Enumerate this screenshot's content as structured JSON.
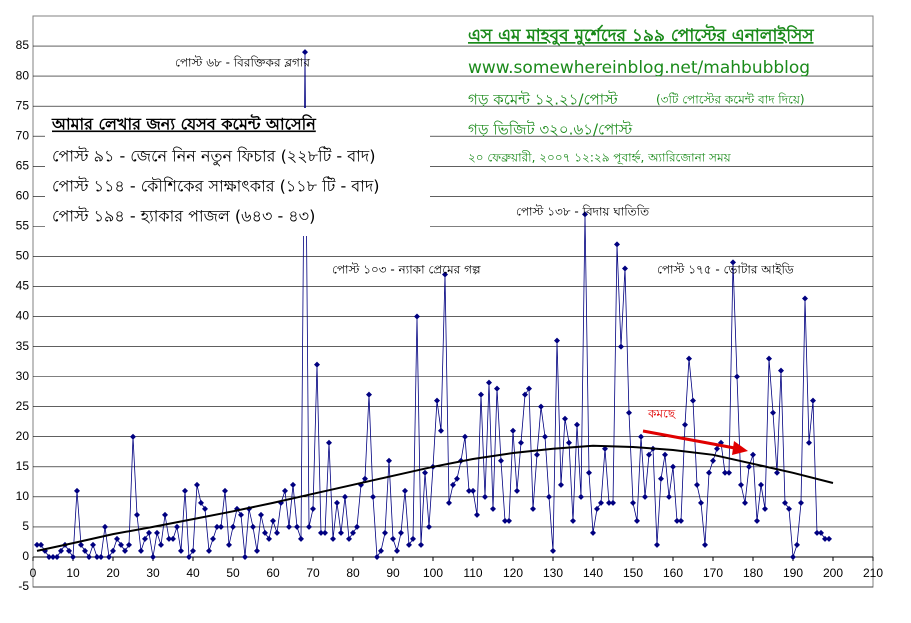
{
  "chart_data": {
    "type": "line",
    "annotations": {
      "title": "এস এম মাহবুব মুর্শেদের ১৯৯ পোস্টের এনালাইসিস",
      "url": "www.somewhereinblog.net/mahbubblog",
      "avg_comment": "গড় কমেন্ট ১২.২১/পোস্ট",
      "avg_comment_note": "(৩টি পোস্টের কমেন্ট বাদ দিয়ে)",
      "avg_visit": "গড় ভিজিট ৩২০.৬১/পোস্ট",
      "date": "২০ ফেব্রুয়ারী, ২০০৭ ১২:২৯ পূবার্হ্ন, অ্যারিজোনা সময়",
      "box_title": "আমার লেখার জন্য যেসব কমেন্ট আসেনি",
      "box_lines": [
        "পোস্ট ৯১ - জেনে নিন নতুন ফিচার (২২৮টি - বাদ)",
        "পোস্ট ১১৪ - কৌশিকের সাক্ষাৎকার (১১৮ টি - বাদ)",
        "পোস্ট ১৯৪ - হ্যাকার পাজল (৬৪৩ - ৪৩)"
      ],
      "peak_68": "পোস্ট ৬৮ - বিরক্তিকর ব্লগার",
      "peak_138": "পোস্ট ১৩৮ - বিদায় ঘাতিতি",
      "peak_103": "পোস্ট ১০৩ - ন্যাকা প্রেমের গল্প",
      "peak_175": "পোস্ট ১৭৫ - ভোটার আইডি",
      "trend_note": "কমছে"
    },
    "x": [
      1,
      2,
      3,
      4,
      5,
      6,
      7,
      8,
      9,
      10,
      11,
      12,
      13,
      14,
      15,
      16,
      17,
      18,
      19,
      20,
      21,
      22,
      23,
      24,
      25,
      26,
      27,
      28,
      29,
      30,
      31,
      32,
      33,
      34,
      35,
      36,
      37,
      38,
      39,
      40,
      41,
      42,
      43,
      44,
      45,
      46,
      47,
      48,
      49,
      50,
      51,
      52,
      53,
      54,
      55,
      56,
      57,
      58,
      59,
      60,
      61,
      62,
      63,
      64,
      65,
      66,
      67,
      68,
      69,
      70,
      71,
      72,
      73,
      74,
      75,
      76,
      77,
      78,
      79,
      80,
      81,
      82,
      83,
      84,
      85,
      86,
      87,
      88,
      89,
      90,
      91,
      92,
      93,
      94,
      95,
      96,
      97,
      98,
      99,
      100,
      101,
      102,
      103,
      104,
      105,
      106,
      107,
      108,
      109,
      110,
      111,
      112,
      113,
      114,
      115,
      116,
      117,
      118,
      119,
      120,
      121,
      122,
      123,
      124,
      125,
      126,
      127,
      128,
      129,
      130,
      131,
      132,
      133,
      134,
      135,
      136,
      137,
      138,
      139,
      140,
      141,
      142,
      143,
      144,
      145,
      146,
      147,
      148,
      149,
      150,
      151,
      152,
      153,
      154,
      155,
      156,
      157,
      158,
      159,
      160,
      161,
      162,
      163,
      164,
      165,
      166,
      167,
      168,
      169,
      170,
      171,
      172,
      173,
      174,
      175,
      176,
      177,
      178,
      179,
      180,
      181,
      182,
      183,
      184,
      185,
      186,
      187,
      188,
      189,
      190,
      191,
      192,
      193,
      194,
      195,
      196,
      197,
      198,
      199
    ],
    "series": [
      {
        "color": "#000080",
        "values": [
          2,
          2,
          1,
          0,
          0,
          0,
          1,
          2,
          1,
          0,
          11,
          2,
          1,
          0,
          2,
          0,
          0,
          5,
          0,
          1,
          3,
          2,
          1,
          2,
          20,
          7,
          1,
          3,
          4,
          0,
          4,
          2,
          7,
          3,
          3,
          5,
          1,
          11,
          0,
          1,
          12,
          9,
          8,
          1,
          3,
          5,
          5,
          11,
          2,
          5,
          8,
          7,
          0,
          8,
          5,
          1,
          7,
          4,
          3,
          6,
          4,
          9,
          11,
          5,
          12,
          5,
          3,
          84,
          5,
          8,
          32,
          4,
          4,
          19,
          3,
          9,
          4,
          10,
          3,
          4,
          5,
          12,
          13,
          27,
          10,
          0,
          1,
          4,
          16,
          3,
          1,
          4,
          11,
          2,
          3,
          40,
          2,
          14,
          5,
          15,
          26,
          21,
          47,
          9,
          12,
          13,
          16,
          20,
          11,
          11,
          7,
          27,
          10,
          29,
          8,
          28,
          16,
          6,
          6,
          21,
          11,
          19,
          27,
          28,
          8,
          17,
          25,
          20,
          10,
          1,
          36,
          12,
          23,
          19,
          6,
          22,
          10,
          57,
          14,
          4,
          8,
          9,
          18,
          9,
          9,
          52,
          35,
          48,
          24,
          9,
          6,
          20,
          10,
          17,
          18,
          2,
          13,
          17,
          10,
          15,
          6,
          6,
          22,
          33,
          26,
          12,
          9,
          2,
          14,
          16,
          18,
          19,
          14,
          14,
          49,
          30,
          12,
          9,
          15,
          17,
          6,
          12,
          8,
          33,
          24,
          14,
          31,
          9,
          8,
          0,
          2,
          9,
          43,
          19,
          26,
          4,
          4,
          3,
          3
        ]
      }
    ],
    "trendline": {
      "color": "#000000",
      "x": [
        1,
        10,
        20,
        30,
        40,
        50,
        60,
        70,
        80,
        90,
        100,
        110,
        120,
        130,
        140,
        150,
        160,
        170,
        180,
        190,
        200
      ],
      "values": [
        1,
        2.3,
        3.8,
        5,
        6.3,
        7.6,
        9,
        10.5,
        12,
        13.5,
        15,
        16.3,
        17.3,
        18,
        18.5,
        18.3,
        17.8,
        17,
        15.5,
        14,
        12.3
      ]
    },
    "xlim": [
      0,
      210
    ],
    "xticks": [
      0,
      10,
      20,
      30,
      40,
      50,
      60,
      70,
      80,
      90,
      100,
      110,
      120,
      130,
      140,
      150,
      160,
      170,
      180,
      190,
      200,
      210
    ],
    "ylim": [
      -5,
      90
    ],
    "yticks": [
      -5,
      0,
      5,
      10,
      15,
      20,
      25,
      30,
      35,
      40,
      45,
      50,
      55,
      60,
      65,
      70,
      75,
      80,
      85
    ],
    "grid": true
  }
}
